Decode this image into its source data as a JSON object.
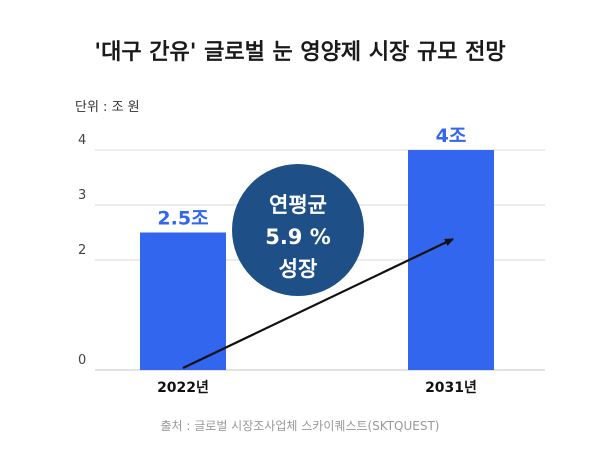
{
  "title": "'대구 간유' 글로벌 눈 영양제 시장 규모 전망",
  "unit_label": "단위 : 조 원",
  "source": "출처 : 글로벌 시장조사업체 스카이퀘스트(SKTQUEST)",
  "badge": {
    "lines": [
      "연평균",
      "5.9 %",
      "성장"
    ],
    "color": "#1e4f87"
  },
  "colors": {
    "bar": "#3366ee",
    "grid": "#d9d9d9",
    "arrow": "#111111"
  },
  "chart_data": {
    "type": "bar",
    "categories": [
      "2022년",
      "2031년"
    ],
    "values": [
      2.5,
      4
    ],
    "data_labels": [
      "2.5조",
      "4조"
    ],
    "yticks": [
      0,
      2,
      3,
      4
    ],
    "ylim": [
      0,
      4
    ],
    "grid": true,
    "title": "'대구 간유' 글로벌 눈 영양제 시장 규모 전망",
    "xlabel": "",
    "ylabel": ""
  }
}
